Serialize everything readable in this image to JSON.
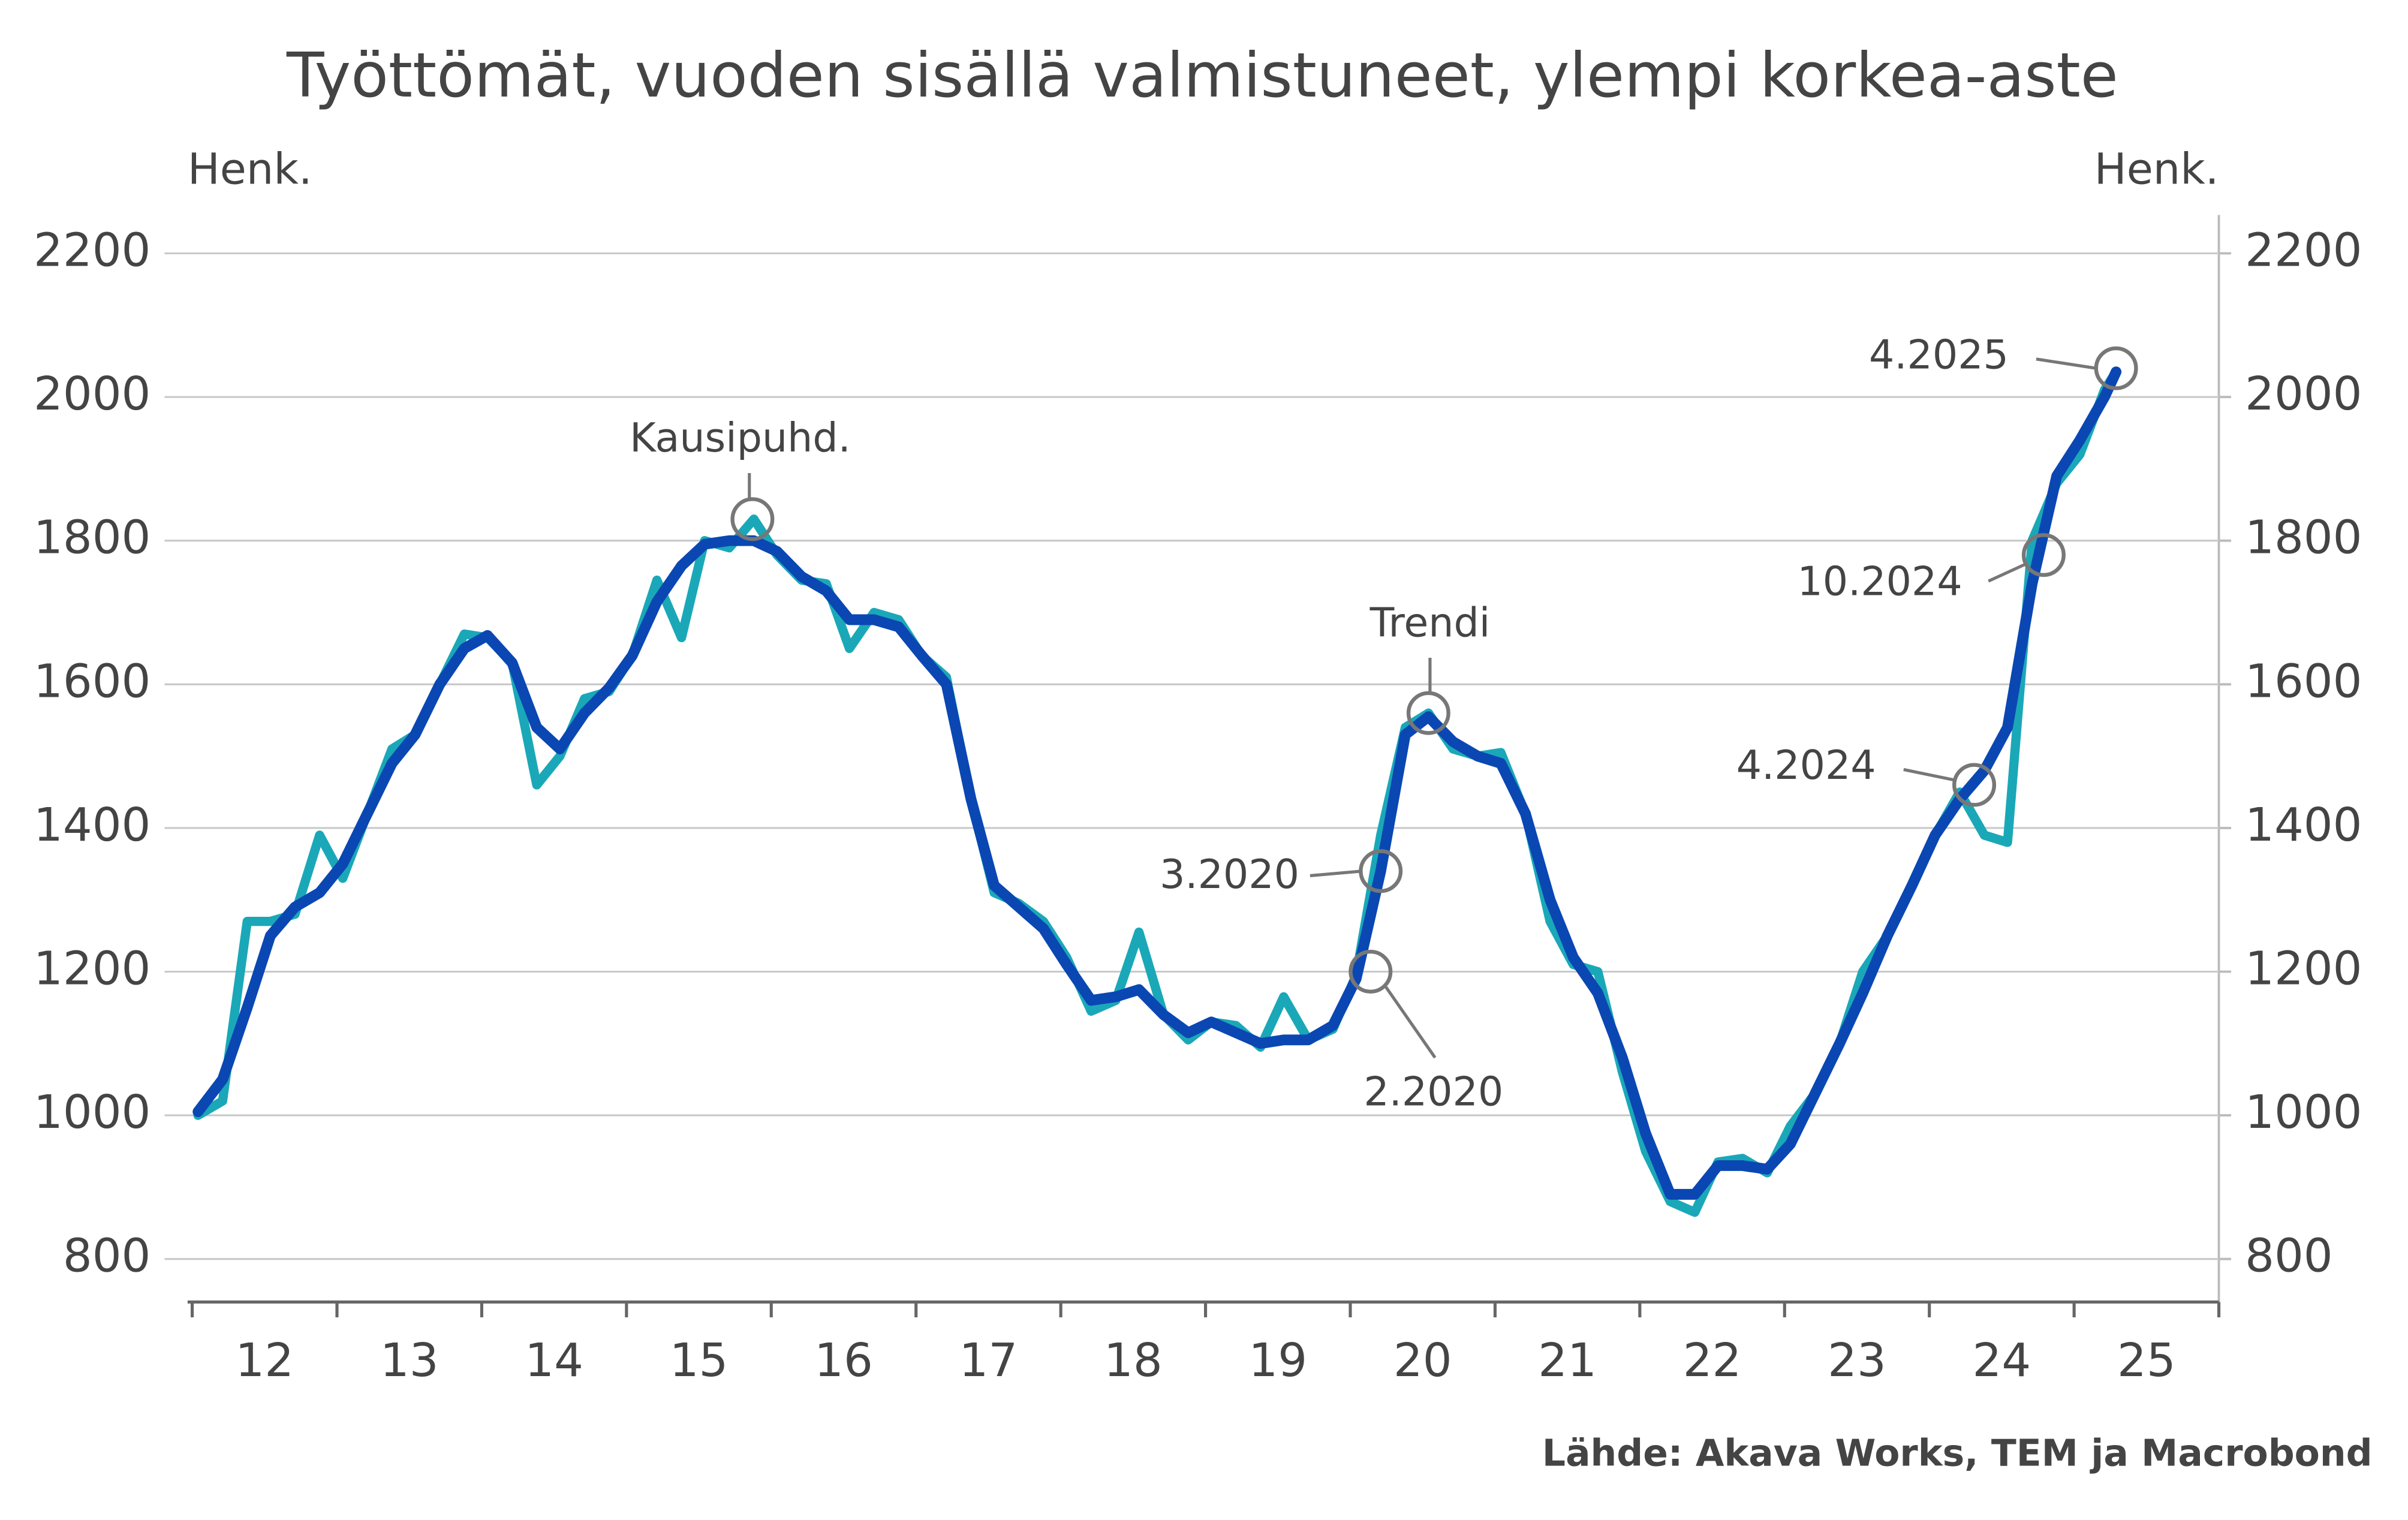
{
  "chart_data": {
    "type": "line",
    "title": "Työttömät, vuoden sisällä valmistuneet, ylempi korkea-aste",
    "y_label": "Henk.",
    "y2_label": "Henk.",
    "source": "Lähde: Akava Works, TEM ja Macrobond",
    "x": [
      12.04,
      12.21,
      12.38,
      12.54,
      12.71,
      12.88,
      13.04,
      13.21,
      13.38,
      13.54,
      13.71,
      13.88,
      14.04,
      14.21,
      14.38,
      14.54,
      14.71,
      14.88,
      15.04,
      15.21,
      15.38,
      15.54,
      15.71,
      15.88,
      16.04,
      16.21,
      16.38,
      16.54,
      16.71,
      16.88,
      17.04,
      17.21,
      17.38,
      17.54,
      17.71,
      17.88,
      18.04,
      18.21,
      18.38,
      18.54,
      18.71,
      18.88,
      19.04,
      19.21,
      19.38,
      19.54,
      19.71,
      19.88,
      20.04,
      20.21,
      20.38,
      20.54,
      20.71,
      20.88,
      21.04,
      21.21,
      21.38,
      21.54,
      21.71,
      21.88,
      22.04,
      22.21,
      22.38,
      22.54,
      22.71,
      22.88,
      23.04,
      23.21,
      23.38,
      23.54,
      23.71,
      23.88,
      24.04,
      24.21,
      24.38,
      24.54,
      24.71,
      24.88,
      25.04,
      25.21,
      25.29
    ],
    "series": [
      {
        "name": "Kausipuhd.",
        "color": "#1aa8b8",
        "values": [
          1000,
          1020,
          1270,
          1270,
          1280,
          1390,
          1330,
          1420,
          1510,
          1530,
          1600,
          1670,
          1665,
          1630,
          1460,
          1500,
          1580,
          1590,
          1640,
          1745,
          1665,
          1800,
          1790,
          1830,
          1780,
          1745,
          1740,
          1650,
          1700,
          1690,
          1640,
          1610,
          1440,
          1310,
          1295,
          1270,
          1220,
          1145,
          1160,
          1255,
          1140,
          1105,
          1130,
          1125,
          1095,
          1165,
          1105,
          1120,
          1195,
          1390,
          1540,
          1560,
          1510,
          1500,
          1505,
          1420,
          1270,
          1210,
          1200,
          1060,
          950,
          880,
          865,
          935,
          940,
          920,
          985,
          1030,
          1100,
          1200,
          1250,
          1320,
          1390,
          1450,
          1390,
          1380,
          1800,
          1880,
          1920,
          2010,
          2035
        ]
      },
      {
        "name": "Trendi",
        "color": "#0a47b3",
        "values": [
          1005,
          1050,
          1150,
          1250,
          1290,
          1310,
          1350,
          1420,
          1490,
          1530,
          1600,
          1650,
          1668,
          1630,
          1540,
          1510,
          1560,
          1595,
          1640,
          1715,
          1765,
          1795,
          1800,
          1800,
          1785,
          1750,
          1730,
          1690,
          1690,
          1680,
          1640,
          1600,
          1440,
          1320,
          1290,
          1260,
          1210,
          1160,
          1165,
          1175,
          1140,
          1115,
          1130,
          1115,
          1100,
          1105,
          1105,
          1125,
          1190,
          1340,
          1530,
          1555,
          1520,
          1500,
          1490,
          1420,
          1300,
          1220,
          1170,
          1080,
          975,
          890,
          890,
          930,
          930,
          925,
          960,
          1030,
          1100,
          1170,
          1250,
          1320,
          1390,
          1440,
          1480,
          1540,
          1740,
          1890,
          1940,
          2000,
          2035
        ]
      }
    ],
    "annotations": [
      {
        "text": "Kausipuhd.",
        "x": 15.87,
        "y": 1830
      },
      {
        "text": "Trendi",
        "x": 20.54,
        "y": 1560
      },
      {
        "text": "3.2020",
        "x": 20.21,
        "y": 1340
      },
      {
        "text": "2.2020",
        "x": 20.14,
        "y": 1200
      },
      {
        "text": "4.2024",
        "x": 24.31,
        "y": 1460
      },
      {
        "text": "10.2024",
        "x": 24.79,
        "y": 1780
      },
      {
        "text": "4.2025",
        "x": 25.29,
        "y": 2040
      }
    ],
    "xlim": [
      12,
      26
    ],
    "xticks": [
      12,
      13,
      14,
      15,
      16,
      17,
      18,
      19,
      20,
      21,
      22,
      23,
      24,
      25,
      26
    ],
    "xtick_labels": [
      "12",
      "13",
      "14",
      "15",
      "16",
      "17",
      "18",
      "19",
      "20",
      "21",
      "22",
      "23",
      "24",
      "25"
    ],
    "ylim": [
      800,
      2200
    ],
    "yticks": [
      800,
      1000,
      1200,
      1400,
      1600,
      1800,
      2000,
      2200
    ],
    "y2lim": [
      800,
      2200
    ],
    "y2ticks": [
      800,
      1000,
      1200,
      1400,
      1600,
      1800,
      2000,
      2200
    ],
    "grid": true
  }
}
